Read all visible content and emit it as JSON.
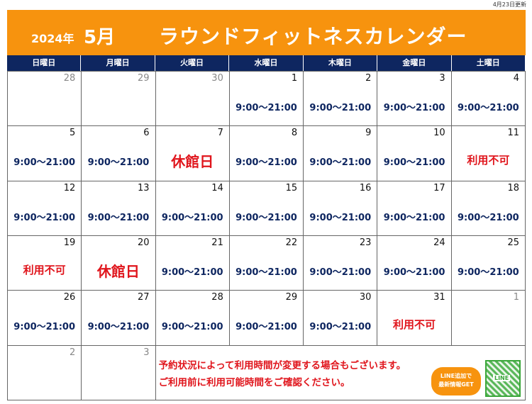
{
  "updated": "4月23日更新",
  "banner": {
    "year": "2024年",
    "month": "5月",
    "title": "ラウンドフィットネスカレンダー",
    "color": "#f7930e"
  },
  "weekdays": [
    "日曜日",
    "月曜日",
    "火曜日",
    "水曜日",
    "木曜日",
    "金曜日",
    "土曜日"
  ],
  "colors": {
    "header": "#0e2660",
    "hours": "#0e2660",
    "alert": "#e0151c"
  },
  "weeks": [
    [
      {
        "day": "28",
        "other": true,
        "text": ""
      },
      {
        "day": "29",
        "other": true,
        "text": ""
      },
      {
        "day": "30",
        "other": true,
        "text": ""
      },
      {
        "day": "1",
        "text": "9:00～21:00",
        "type": "hours"
      },
      {
        "day": "2",
        "text": "9:00～21:00",
        "type": "hours"
      },
      {
        "day": "3",
        "text": "9:00～21:00",
        "type": "hours"
      },
      {
        "day": "4",
        "text": "9:00～21:00",
        "type": "hours"
      }
    ],
    [
      {
        "day": "5",
        "text": "9:00～21:00",
        "type": "hours"
      },
      {
        "day": "6",
        "text": "9:00～21:00",
        "type": "hours"
      },
      {
        "day": "7",
        "text": "休館日",
        "type": "closed"
      },
      {
        "day": "8",
        "text": "9:00～21:00",
        "type": "hours"
      },
      {
        "day": "9",
        "text": "9:00～21:00",
        "type": "hours"
      },
      {
        "day": "10",
        "text": "9:00～21:00",
        "type": "hours"
      },
      {
        "day": "11",
        "text": "利用不可",
        "type": "na"
      }
    ],
    [
      {
        "day": "12",
        "text": "9:00～21:00",
        "type": "hours"
      },
      {
        "day": "13",
        "text": "9:00～21:00",
        "type": "hours"
      },
      {
        "day": "14",
        "text": "9:00～21:00",
        "type": "hours"
      },
      {
        "day": "15",
        "text": "9:00～21:00",
        "type": "hours"
      },
      {
        "day": "16",
        "text": "9:00～21:00",
        "type": "hours"
      },
      {
        "day": "17",
        "text": "9:00～21:00",
        "type": "hours"
      },
      {
        "day": "18",
        "text": "9:00～21:00",
        "type": "hours"
      }
    ],
    [
      {
        "day": "19",
        "text": "利用不可",
        "type": "na"
      },
      {
        "day": "20",
        "text": "休館日",
        "type": "closed"
      },
      {
        "day": "21",
        "text": "9:00～21:00",
        "type": "hours"
      },
      {
        "day": "22",
        "text": "9:00～21:00",
        "type": "hours"
      },
      {
        "day": "23",
        "text": "9:00～21:00",
        "type": "hours"
      },
      {
        "day": "24",
        "text": "9:00～21:00",
        "type": "hours"
      },
      {
        "day": "25",
        "text": "9:00～21:00",
        "type": "hours"
      }
    ],
    [
      {
        "day": "26",
        "text": "9:00～21:00",
        "type": "hours"
      },
      {
        "day": "27",
        "text": "9:00～21:00",
        "type": "hours"
      },
      {
        "day": "28",
        "text": "9:00～21:00",
        "type": "hours"
      },
      {
        "day": "29",
        "text": "9:00～21:00",
        "type": "hours"
      },
      {
        "day": "30",
        "text": "9:00～21:00",
        "type": "hours"
      },
      {
        "day": "31",
        "text": "利用不可",
        "type": "na"
      },
      {
        "day": "1",
        "other": true,
        "text": ""
      }
    ],
    [
      {
        "day": "2",
        "other": true,
        "text": ""
      },
      {
        "day": "3",
        "other": true,
        "text": ""
      }
    ]
  ],
  "note": {
    "line1": "予約状況によって利用時間が変更する場合もございます。",
    "line2": "ご利用前に利用可能時間をご確認ください。"
  },
  "line_promo": {
    "bubble_line1": "LINE追加で",
    "bubble_line2": "最新情報GET",
    "qr_label": "LINE"
  }
}
